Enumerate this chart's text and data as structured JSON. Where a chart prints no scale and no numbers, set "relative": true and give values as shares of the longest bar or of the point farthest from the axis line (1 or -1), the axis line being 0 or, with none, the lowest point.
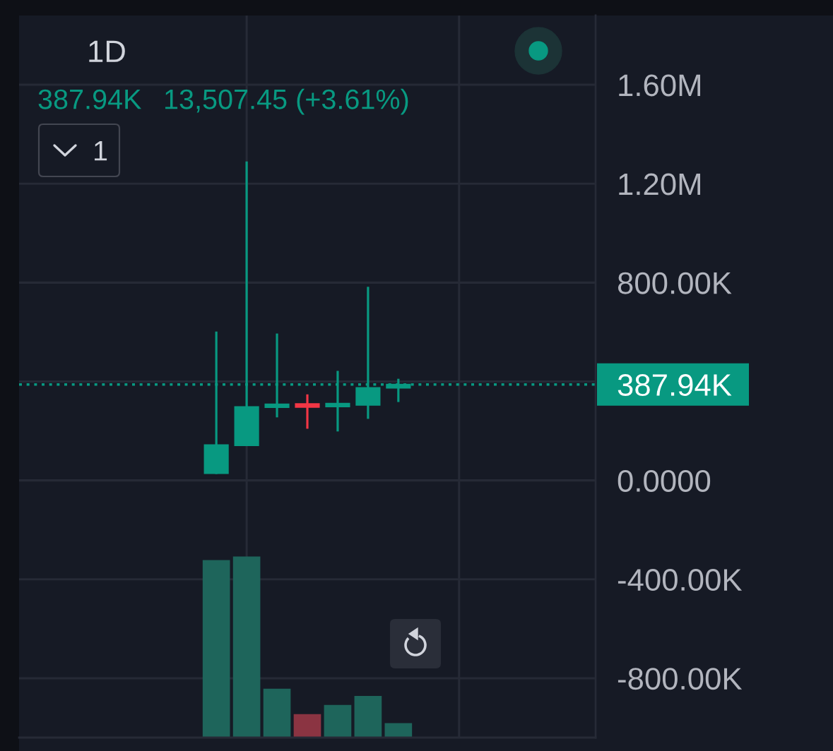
{
  "chart_data": [
    {
      "type": "candlestick",
      "title": "1D",
      "annotations": [
        "387.94K",
        "13,507.45 (+3.61%)",
        "1"
      ],
      "categories": [
        null,
        null,
        null,
        null,
        null,
        null,
        null,
        null,
        null,
        null,
        null,
        null,
        null,
        null,
        null,
        null,
        null,
        null,
        null
      ],
      "ohlc": [
        null,
        null,
        null,
        null,
        null,
        null,
        [
          29000,
          602000,
          26000,
          143000
        ],
        [
          142000,
          1290000,
          142000,
          297000
        ],
        [
          296000,
          594000,
          255000,
          308000
        ],
        [
          309000,
          348000,
          209000,
          297000
        ],
        [
          299000,
          443000,
          198000,
          311000
        ],
        [
          305000,
          783000,
          249000,
          374430
        ],
        [
          374430,
          411000,
          317000,
          387940
        ],
        null,
        null,
        null,
        null,
        null,
        null
      ],
      "colors": [
        null,
        null,
        null,
        null,
        null,
        null,
        "#089981",
        "#089981",
        "#089981",
        "#f23645",
        "#089981",
        "#089981",
        "#089981",
        null,
        null,
        null,
        null,
        null,
        null
      ],
      "ylim": [
        -1040000,
        1880000
      ],
      "yticks": [
        {
          "value": -800000,
          "label": "-800.00K"
        },
        {
          "value": -400000,
          "label": "-400.00K"
        },
        {
          "value": 0,
          "label": "0.0000"
        },
        {
          "value": 400000,
          "label": null
        },
        {
          "value": 800000,
          "label": "800.00K"
        },
        {
          "value": 1200000,
          "label": "1.20M"
        },
        {
          "value": 1600000,
          "label": "1.60M"
        }
      ],
      "ref_lines": [
        {
          "axis": "y",
          "value": 387940,
          "label": "387.94K",
          "color": "#089981",
          "line_style": "dotted"
        }
      ],
      "grid": true,
      "tick_labels": "y"
    },
    {
      "type": "bar",
      "relative": true,
      "categories": [
        null,
        null,
        null,
        null,
        null,
        null,
        null,
        null,
        null,
        null,
        null,
        null,
        null,
        null,
        null,
        null,
        null,
        null,
        null
      ],
      "values": [
        null,
        null,
        null,
        null,
        null,
        null,
        0.98,
        1,
        0.27,
        0.13,
        0.18,
        0.23,
        0.08,
        null,
        null,
        null,
        null,
        null,
        null
      ],
      "colors": [
        null,
        null,
        null,
        null,
        null,
        null,
        "#1e655b",
        "#1e655b",
        "#1e655b",
        "#8b3442",
        "#1e655b",
        "#1e655b",
        "#1e655b",
        null,
        null,
        null,
        null,
        null,
        null
      ],
      "tick_labels": false
    }
  ]
}
